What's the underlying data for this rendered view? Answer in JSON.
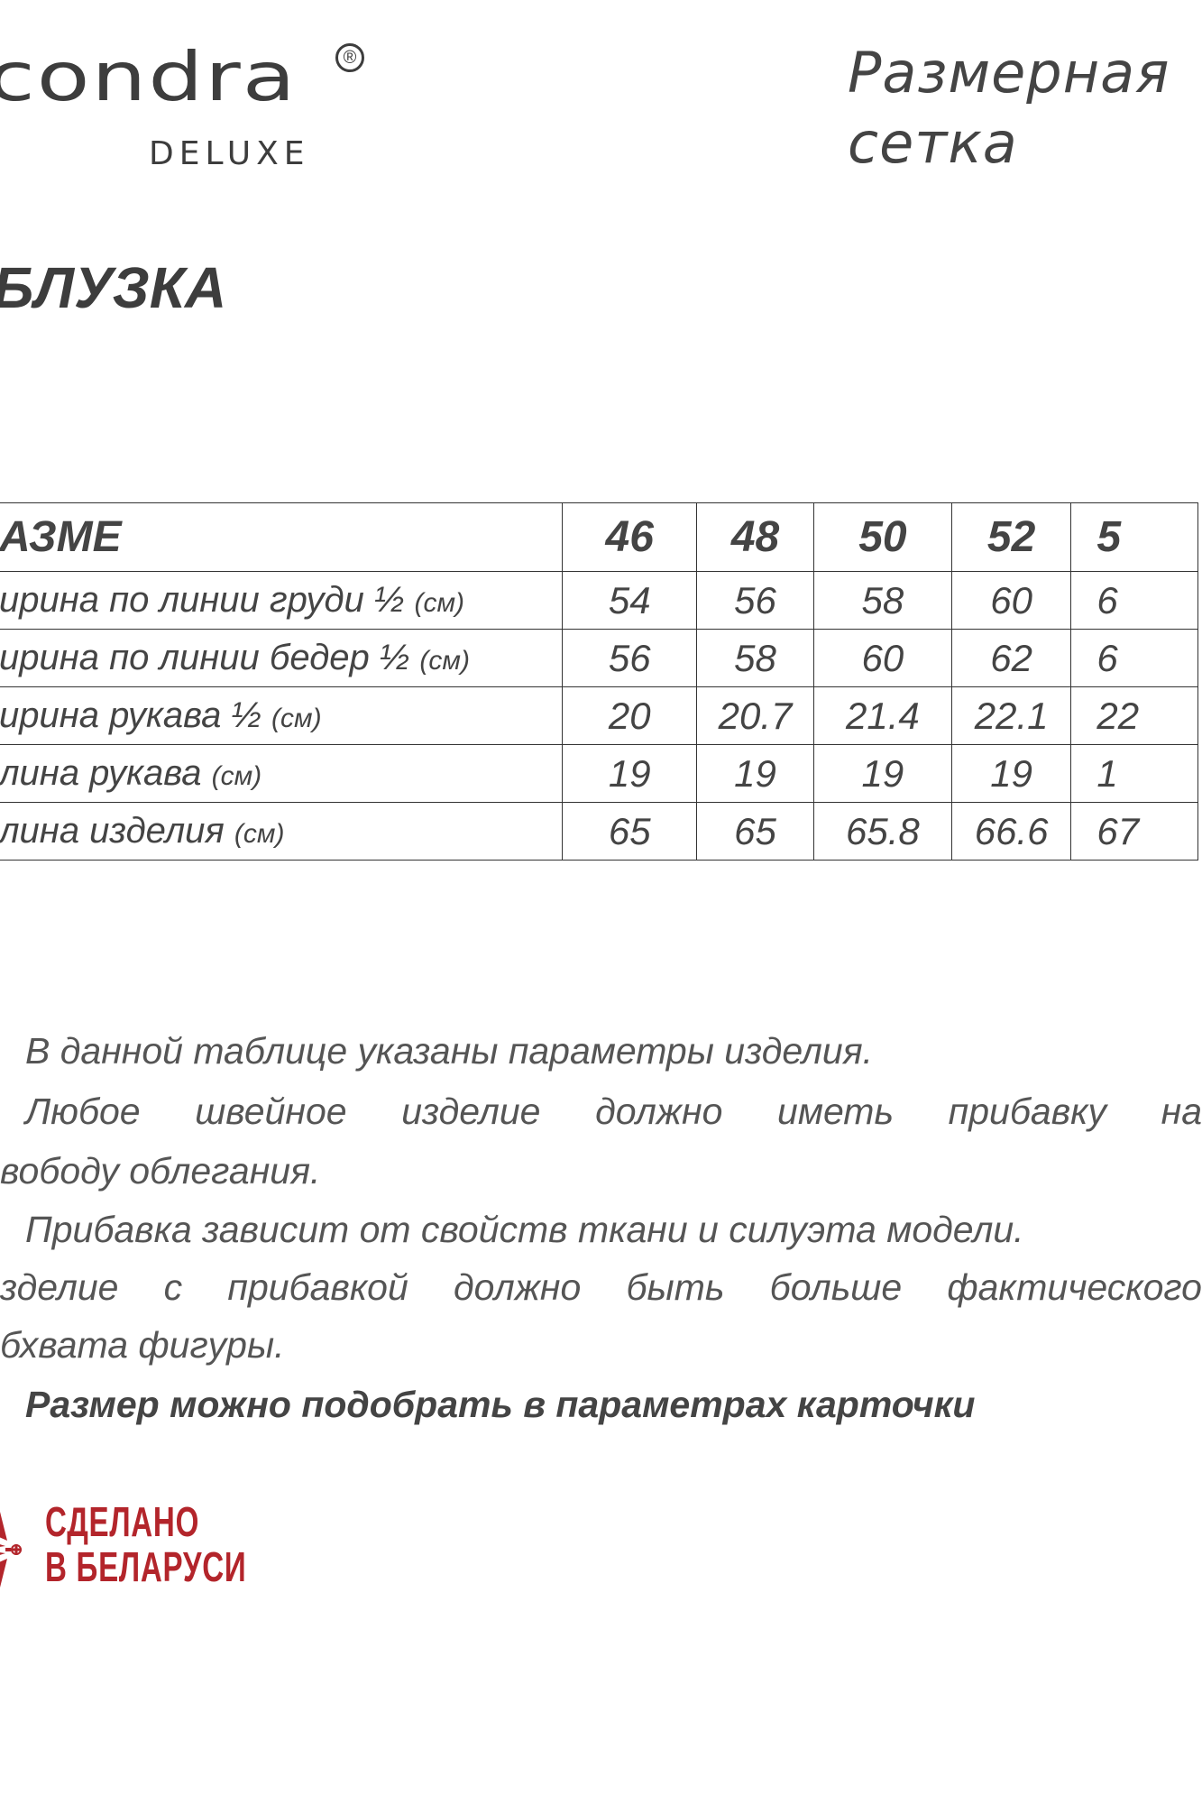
{
  "header": {
    "logo_text": "condra",
    "logo_sub": "DELUXE",
    "logo_mark": "®",
    "title_line1": "Размерная",
    "title_line2": "сетка"
  },
  "product_title": "БЛУЗКА",
  "table": {
    "header": {
      "label": "АЗМЕ",
      "sizes": [
        "46",
        "48",
        "50",
        "52",
        "5"
      ]
    },
    "rows": [
      {
        "label": "ирина по линии груди ½",
        "unit": "(см)",
        "values": [
          "54",
          "56",
          "58",
          "60",
          "6"
        ]
      },
      {
        "label": "ирина по линии бедер ½",
        "unit": "(см)",
        "values": [
          "56",
          "58",
          "60",
          "62",
          "6"
        ]
      },
      {
        "label": "ирина рукава ½",
        "unit": "(см)",
        "values": [
          "20",
          "20.7",
          "21.4",
          "22.1",
          "22"
        ]
      },
      {
        "label": "лина рукава",
        "unit": "(см)",
        "values": [
          "19",
          "19",
          "19",
          "19",
          "1"
        ]
      },
      {
        "label": "лина изделия",
        "unit": "(см)",
        "values": [
          "65",
          "65",
          "65.8",
          "66.6",
          "67"
        ]
      }
    ]
  },
  "notes": [
    "В данной таблице указаны параметры изделия.",
    "Любое швейное изделие должно иметь прибавку на",
    "вободу облегания.",
    "Прибавка зависит от свойств ткани и силуэта модели.",
    "зделие с прибавкой должно быть больше фактического",
    "бхвата фигуры.",
    "Размер можно подобрать в параметрах карточки"
  ],
  "badge": {
    "line1": "СДЕЛАНО",
    "line2": "В БЕЛАРУСИ",
    "color": "#b3252b",
    "icon": "belarus-ornament-star-icon"
  }
}
